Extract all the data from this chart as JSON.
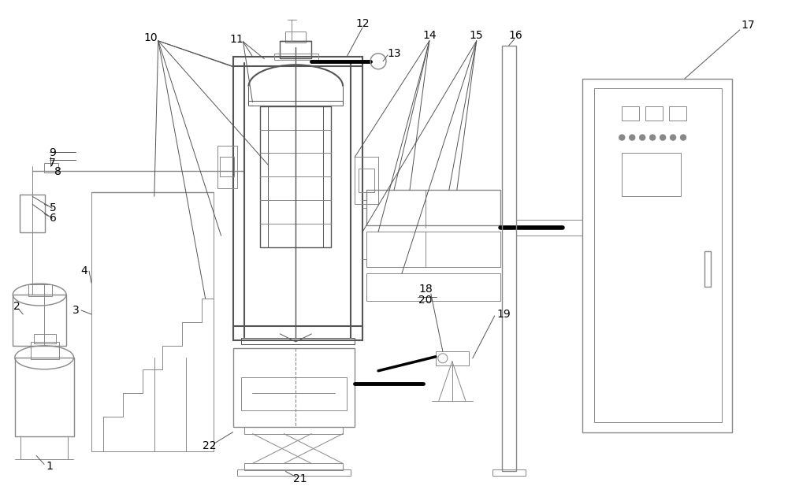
{
  "bg_color": "#ffffff",
  "line_color": "#aaaaaa",
  "med_color": "#888888",
  "dark_color": "#555555",
  "black": "#000000",
  "lw_thin": 0.7,
  "lw_med": 1.0,
  "lw_thick": 1.5,
  "lw_black": 2.5,
  "font_size": 10
}
